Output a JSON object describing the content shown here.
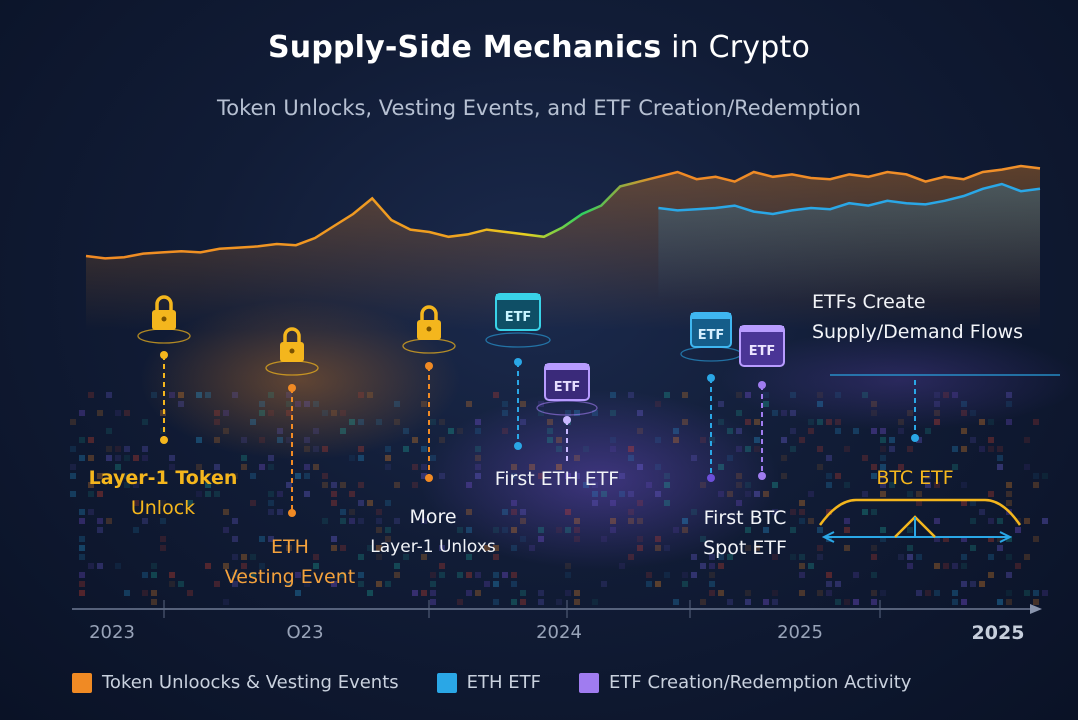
{
  "header": {
    "title_bold": "Supply-Side Mechanics",
    "title_rest": "in Crypto",
    "subtitle": "Token Unlocks, Vesting Events, and ETF Creation/Redemption"
  },
  "chart_data": {
    "type": "line",
    "x_ticks": [
      "2023",
      "O23",
      "2024",
      "2025",
      "2025"
    ],
    "series": [
      {
        "name": "Token Unloocks & Vesting Events",
        "color": "#f08a24",
        "x": [
          0,
          2,
          4,
          6,
          8,
          10,
          12,
          14,
          16,
          18,
          20,
          22,
          24,
          26,
          28,
          30,
          32,
          34,
          36,
          38,
          40,
          42,
          44,
          46,
          48,
          50,
          52,
          54,
          56,
          58,
          60,
          62,
          64,
          66,
          68,
          70,
          72,
          74,
          76,
          78,
          80,
          82,
          84,
          86,
          88,
          90,
          92,
          94,
          96,
          98,
          100
        ],
        "y": [
          20,
          18,
          19,
          22,
          23,
          24,
          23,
          26,
          27,
          28,
          30,
          29,
          35,
          45,
          55,
          68,
          50,
          42,
          40,
          36,
          38,
          42,
          40,
          38,
          36,
          44,
          55,
          62,
          78,
          82,
          86,
          90,
          84,
          86,
          82,
          90,
          86,
          88,
          85,
          84,
          88,
          86,
          90,
          88,
          82,
          86,
          84,
          90,
          92,
          95,
          93
        ]
      },
      {
        "name": "ETH ETF",
        "color": "#2aa7e6",
        "x": [
          60,
          62,
          64,
          66,
          68,
          70,
          72,
          74,
          76,
          78,
          80,
          82,
          84,
          86,
          88,
          90,
          92,
          94,
          96,
          98,
          100
        ],
        "y": [
          60,
          58,
          59,
          60,
          62,
          57,
          55,
          58,
          60,
          59,
          64,
          62,
          66,
          64,
          63,
          66,
          70,
          76,
          80,
          74,
          76
        ]
      }
    ],
    "milestones": [
      {
        "icon": "lock-icon",
        "label_lines": [
          "Layer-1 Token",
          "Unlock"
        ]
      },
      {
        "icon": "lock-icon",
        "label_lines": [
          "ETH",
          "Vesting Event"
        ]
      },
      {
        "icon": "lock-icon",
        "label_lines": [
          "More",
          "Layer-1 Unloxs"
        ]
      },
      {
        "icon": "etf-icon",
        "badge": "ETF",
        "label_lines": [
          "First ETH ETF"
        ]
      },
      {
        "icon": "etf-icon",
        "badge": "ETF"
      },
      {
        "icon": "etf-icon",
        "badge": "ETF",
        "label_lines": [
          "First BTC",
          "Spot ETF"
        ]
      },
      {
        "icon": "etf-icon",
        "badge": "ETF"
      },
      {
        "icon": "flow-icon",
        "label_lines": [
          "ETFs Create",
          "Supply/Demand Flows"
        ]
      }
    ],
    "btc_etf_label": "BTC ETF",
    "legend": [
      {
        "label": "Token Unloocks & Vesting Events",
        "color": "#f08a24"
      },
      {
        "label": "ETH ETF",
        "color": "#2aa7e6"
      },
      {
        "label": "ETF Creation/Redemption Activity",
        "color": "#a07cf0"
      }
    ]
  }
}
